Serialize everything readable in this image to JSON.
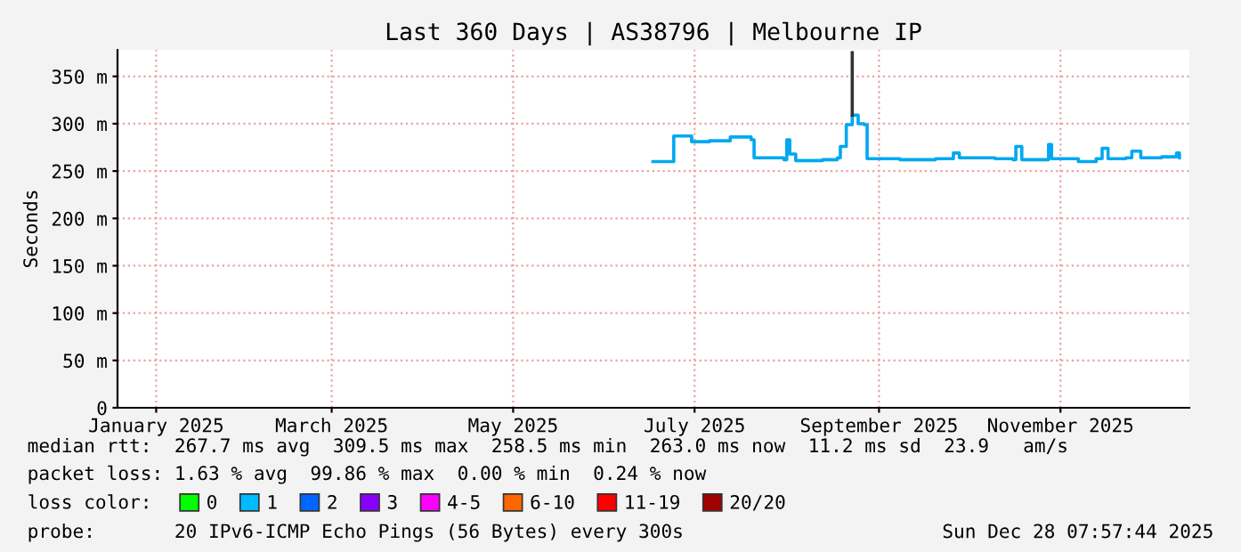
{
  "chart_data": {
    "type": "line",
    "title": "Last 360 Days | AS38796 | Melbourne IP",
    "ylabel": "Seconds",
    "x": [
      "2025-07-01",
      "2025-07-08",
      "2025-07-10",
      "2025-07-14",
      "2025-07-20",
      "2025-07-27",
      "2025-08-03",
      "2025-08-04",
      "2025-08-14",
      "2025-08-15",
      "2025-08-16",
      "2025-08-18",
      "2025-08-27",
      "2025-09-01",
      "2025-09-02",
      "2025-09-04",
      "2025-09-06",
      "2025-09-08",
      "2025-09-10",
      "2025-09-11",
      "2025-09-22",
      "2025-10-04",
      "2025-10-10",
      "2025-10-12",
      "2025-10-24",
      "2025-10-30",
      "2025-10-31",
      "2025-11-02",
      "2025-11-11",
      "2025-11-12",
      "2025-11-21",
      "2025-11-27",
      "2025-11-29",
      "2025-12-01",
      "2025-12-07",
      "2025-12-09",
      "2025-12-12",
      "2025-12-19",
      "2025-12-24",
      "2025-12-25"
    ],
    "series": [
      {
        "type": "step",
        "color": "#00a8f0",
        "values": [
          260,
          287,
          287,
          281,
          282,
          286,
          283,
          264,
          262,
          283,
          268,
          261,
          262,
          264,
          276,
          299,
          309,
          300,
          299,
          263,
          262,
          263,
          269,
          264,
          263,
          262,
          276,
          262,
          278,
          263,
          260,
          263,
          274,
          263,
          264,
          271,
          264,
          265,
          269,
          264
        ]
      },
      {
        "color": "#333333",
        "x": [
          "2025-09-06",
          "2025-09-06"
        ],
        "values": [
          309,
          375
        ]
      },
      {
        "name": "0",
        "color": "#00ff00",
        "values": [
          null,
          null,
          null,
          null,
          null,
          null,
          null,
          null,
          null,
          null,
          null,
          null,
          null,
          null,
          null,
          null,
          null,
          null,
          null,
          null,
          null,
          null,
          null,
          null,
          null,
          null,
          null,
          null,
          null,
          null,
          null,
          null,
          null,
          null,
          null,
          null,
          null,
          null,
          null,
          null
        ]
      },
      {
        "name": "1",
        "color": "#00bbff",
        "values": [
          null,
          null,
          null,
          null,
          null,
          null,
          null,
          null,
          null,
          null,
          null,
          null,
          null,
          null,
          null,
          null,
          null,
          null,
          null,
          null,
          null,
          null,
          null,
          null,
          null,
          null,
          null,
          null,
          null,
          null,
          null,
          null,
          null,
          null,
          null,
          null,
          null,
          null,
          null,
          null
        ]
      },
      {
        "name": "2",
        "color": "#0066ff",
        "values": [
          null,
          null,
          null,
          null,
          null,
          null,
          null,
          null,
          null,
          null,
          null,
          null,
          null,
          null,
          null,
          null,
          null,
          null,
          null,
          null,
          null,
          null,
          null,
          null,
          null,
          null,
          null,
          null,
          null,
          null,
          null,
          null,
          null,
          null,
          null,
          null,
          null,
          null,
          null,
          null
        ]
      },
      {
        "name": "3",
        "color": "#8800ff",
        "values": [
          null,
          null,
          null,
          null,
          null,
          null,
          null,
          null,
          null,
          null,
          null,
          null,
          null,
          null,
          null,
          null,
          null,
          null,
          null,
          null,
          null,
          null,
          null,
          null,
          null,
          null,
          null,
          null,
          null,
          null,
          null,
          null,
          null,
          null,
          null,
          null,
          null,
          null,
          null,
          null
        ]
      },
      {
        "name": "4-5",
        "color": "#ff00ff",
        "values": [
          null,
          null,
          null,
          null,
          null,
          null,
          null,
          null,
          null,
          null,
          null,
          null,
          null,
          null,
          null,
          null,
          null,
          null,
          null,
          null,
          null,
          null,
          null,
          null,
          null,
          null,
          null,
          null,
          null,
          null,
          null,
          null,
          null,
          null,
          null,
          null,
          null,
          null,
          null,
          null
        ]
      },
      {
        "name": "6-10",
        "color": "#ff6600",
        "values": [
          null,
          null,
          null,
          null,
          null,
          null,
          null,
          null,
          null,
          null,
          null,
          null,
          null,
          null,
          null,
          null,
          null,
          null,
          null,
          null,
          null,
          null,
          null,
          null,
          null,
          null,
          null,
          null,
          null,
          null,
          null,
          null,
          null,
          null,
          null,
          null,
          null,
          null,
          null,
          null
        ]
      },
      {
        "name": "11-19",
        "color": "#ff0000",
        "values": [
          null,
          null,
          null,
          null,
          null,
          null,
          null,
          null,
          null,
          null,
          null,
          null,
          null,
          null,
          null,
          null,
          null,
          null,
          null,
          null,
          null,
          null,
          null,
          null,
          null,
          null,
          null,
          null,
          null,
          null,
          null,
          null,
          null,
          null,
          null,
          null,
          null,
          null,
          null,
          null
        ]
      },
      {
        "name": "20/20",
        "color": "#a00000",
        "values": [
          null,
          null,
          null,
          null,
          null,
          null,
          null,
          null,
          null,
          null,
          null,
          null,
          null,
          null,
          null,
          null,
          null,
          null,
          null,
          null,
          null,
          null,
          null,
          null,
          null,
          null,
          null,
          null,
          null,
          null,
          null,
          null,
          null,
          null,
          null,
          null,
          null,
          null,
          null,
          null
        ]
      }
    ],
    "legend_title": "loss color:",
    "legend": "bottom",
    "xlim": [
      "2025-01-02",
      "2025-12-28T07:57"
    ],
    "xticks": [
      {
        "value": "2025-01-15",
        "label": "January 2025"
      },
      {
        "value": "2025-03-15",
        "label": "March 2025"
      },
      {
        "value": "2025-05-15",
        "label": "May 2025"
      },
      {
        "value": "2025-07-15",
        "label": "July 2025"
      },
      {
        "value": "2025-09-15",
        "label": "September 2025"
      },
      {
        "value": "2025-11-15",
        "label": "November 2025"
      }
    ],
    "ylim": [
      0,
      378
    ],
    "yticks": [
      0,
      {
        "value": 50,
        "label": "50 m"
      },
      {
        "value": 100,
        "label": "100 m"
      },
      {
        "value": 150,
        "label": "150 m"
      },
      {
        "value": 200,
        "label": "200 m"
      },
      {
        "value": 250,
        "label": "250 m"
      },
      {
        "value": 300,
        "label": "300 m"
      },
      {
        "value": 350,
        "label": "350 m"
      }
    ],
    "grid": true,
    "annotations": [
      "median rtt:  267.7 ms avg  309.5 ms max  258.5 ms min  263.0 ms now  11.2 ms sd  23.9   am/s",
      "packet loss: 1.63 % avg  99.86 % max  0.00 % min  0.24 % now",
      "probe:       20 IPv6-ICMP Echo Pings (56 Bytes) every 300s",
      "Sun Dec 28 07:57:44 2025"
    ]
  }
}
